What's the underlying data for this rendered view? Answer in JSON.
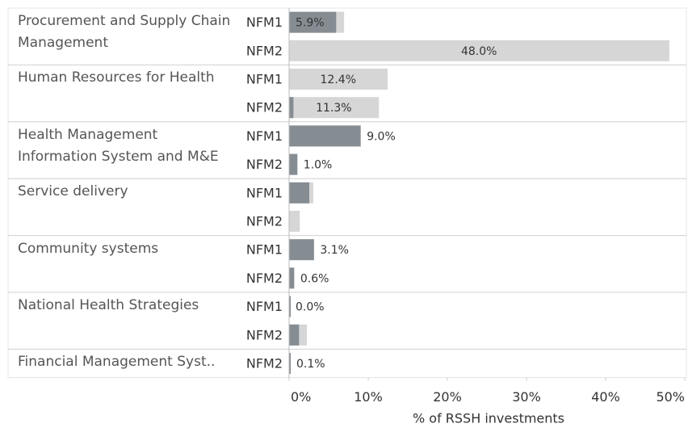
{
  "chart_data": {
    "type": "bar",
    "orientation": "horizontal",
    "x_label": "% of RSSH investments",
    "group_labels": [
      "Procurement and Supply Chain Management",
      null,
      "Human Resources for Health",
      null,
      "Health Management Information System and M&E",
      null,
      "Service delivery",
      null,
      "Community systems",
      null,
      "National Health Strategies",
      null,
      "Financial Management Syst.."
    ],
    "categories": [
      "NFM1",
      "NFM2",
      "NFM1",
      "NFM2",
      "NFM1",
      "NFM2",
      "NFM1",
      "NFM2",
      "NFM1",
      "NFM2",
      "NFM1",
      "NFM2",
      "NFM2"
    ],
    "series": [
      {
        "color": "#d6d6d6",
        "values": [
          6.9,
          48.0,
          12.4,
          11.3,
          null,
          null,
          3.0,
          1.3,
          null,
          null,
          null,
          2.2,
          null
        ],
        "value_labels": [
          null,
          "48.0%",
          "12.4%",
          "11.3%",
          null,
          null,
          null,
          null,
          null,
          null,
          null,
          null,
          null
        ]
      },
      {
        "color": "#858d93",
        "values": [
          5.9,
          null,
          null,
          0.5,
          9.0,
          1.0,
          2.5,
          null,
          3.1,
          0.6,
          0.0,
          1.2,
          0.1
        ],
        "value_labels": [
          "5.9%",
          null,
          null,
          null,
          "9.0%",
          "1.0%",
          null,
          null,
          "3.1%",
          "0.6%",
          "0.0%",
          null,
          "0.1%"
        ]
      }
    ],
    "xlim": [
      0,
      50
    ],
    "xticks": [
      {
        "value": 0,
        "label": "0%"
      },
      {
        "value": 10,
        "label": "10%"
      },
      {
        "value": 20,
        "label": "20%"
      },
      {
        "value": 30,
        "label": "30%"
      },
      {
        "value": 40,
        "label": "40%"
      },
      {
        "value": 50,
        "label": "50%"
      }
    ]
  }
}
